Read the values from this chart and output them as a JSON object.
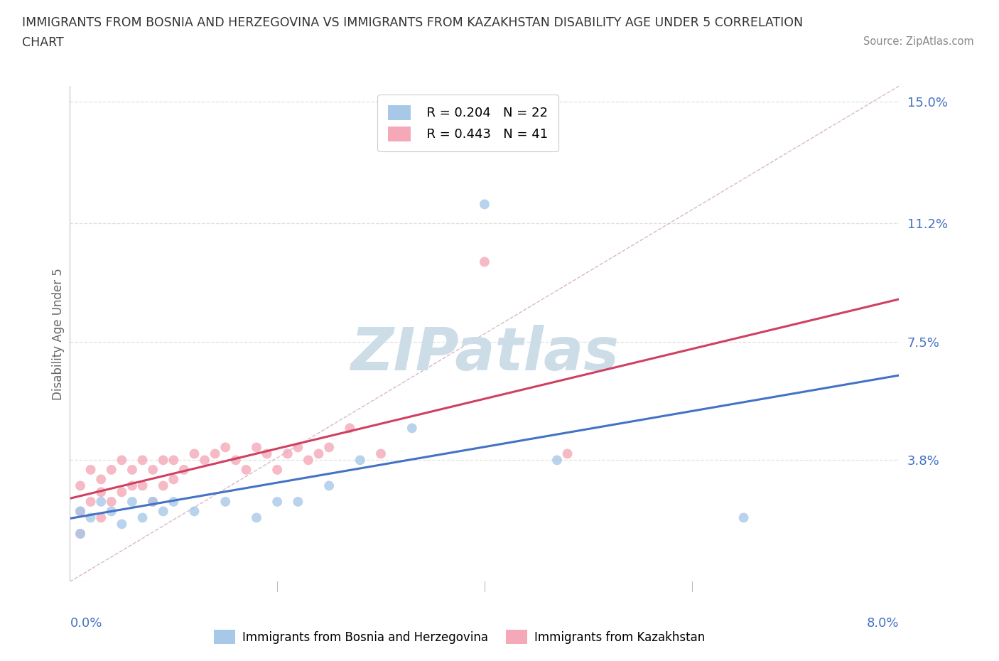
{
  "title_line1": "IMMIGRANTS FROM BOSNIA AND HERZEGOVINA VS IMMIGRANTS FROM KAZAKHSTAN DISABILITY AGE UNDER 5 CORRELATION",
  "title_line2": "CHART",
  "source": "Source: ZipAtlas.com",
  "ylabel": "Disability Age Under 5",
  "xlim": [
    0.0,
    0.08
  ],
  "ylim": [
    0.0,
    0.155
  ],
  "xtick_left_label": "0.0%",
  "xtick_right_label": "8.0%",
  "ytick_vals": [
    0.0,
    0.038,
    0.075,
    0.112,
    0.15
  ],
  "ytick_labels": [
    "",
    "3.8%",
    "7.5%",
    "11.2%",
    "15.0%"
  ],
  "legend_R_bosnia": "R = 0.204",
  "legend_N_bosnia": "N = 22",
  "legend_R_kazakhstan": "R = 0.443",
  "legend_N_kazakhstan": "N = 41",
  "legend_label_bosnia": "Immigrants from Bosnia and Herzegovina",
  "legend_label_kazakhstan": "Immigrants from Kazakhstan",
  "color_bosnia": "#a8c8e8",
  "color_kazakhstan": "#f4a8b8",
  "color_trend_bosnia": "#4472c4",
  "color_trend_kazakhstan": "#d04060",
  "color_diagonal": "#d8b8c8",
  "color_grid": "#e0e0e0",
  "color_ytick": "#4472c4",
  "color_xtick": "#4472c4",
  "color_title": "#333333",
  "color_source": "#888888",
  "color_ylabel": "#666666",
  "watermark_text": "ZIPatlas",
  "watermark_color": "#ccdde8",
  "background": "#ffffff",
  "bosnia_x": [
    0.001,
    0.001,
    0.002,
    0.003,
    0.004,
    0.005,
    0.006,
    0.007,
    0.008,
    0.009,
    0.01,
    0.012,
    0.015,
    0.018,
    0.02,
    0.022,
    0.025,
    0.028,
    0.033,
    0.04,
    0.047,
    0.065
  ],
  "bosnia_y": [
    0.022,
    0.015,
    0.02,
    0.025,
    0.022,
    0.018,
    0.025,
    0.02,
    0.025,
    0.022,
    0.025,
    0.022,
    0.025,
    0.02,
    0.025,
    0.025,
    0.03,
    0.038,
    0.048,
    0.118,
    0.038,
    0.02
  ],
  "kazakhstan_x": [
    0.001,
    0.001,
    0.001,
    0.002,
    0.002,
    0.003,
    0.003,
    0.003,
    0.004,
    0.004,
    0.005,
    0.005,
    0.006,
    0.006,
    0.007,
    0.007,
    0.008,
    0.008,
    0.009,
    0.009,
    0.01,
    0.01,
    0.011,
    0.012,
    0.013,
    0.014,
    0.015,
    0.016,
    0.017,
    0.018,
    0.019,
    0.02,
    0.021,
    0.022,
    0.023,
    0.024,
    0.025,
    0.027,
    0.03,
    0.04,
    0.048
  ],
  "kazakhstan_y": [
    0.022,
    0.03,
    0.015,
    0.025,
    0.035,
    0.028,
    0.032,
    0.02,
    0.035,
    0.025,
    0.038,
    0.028,
    0.03,
    0.035,
    0.038,
    0.03,
    0.035,
    0.025,
    0.038,
    0.03,
    0.032,
    0.038,
    0.035,
    0.04,
    0.038,
    0.04,
    0.042,
    0.038,
    0.035,
    0.042,
    0.04,
    0.035,
    0.04,
    0.042,
    0.038,
    0.04,
    0.042,
    0.048,
    0.04,
    0.1,
    0.04
  ]
}
